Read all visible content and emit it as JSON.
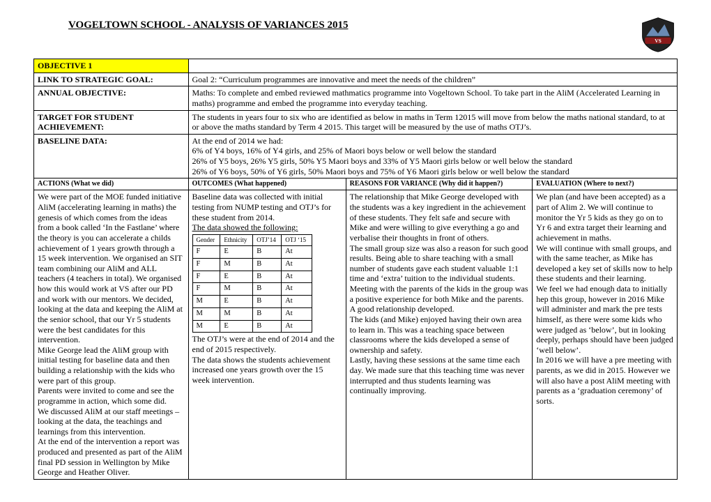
{
  "title": "VOGELTOWN SCHOOL - ANALYSIS OF VARIANCES 2015",
  "logo": {
    "top_color": "#6a8bb5",
    "band_color": "#8b1a1a",
    "vs": "VS"
  },
  "rows": {
    "objective": {
      "label": "OBJECTIVE 1",
      "value": ""
    },
    "link": {
      "label": "LINK TO STRATEGIC GOAL:",
      "value": "Goal 2: “Curriculum programmes are innovative and meet the needs of the children”"
    },
    "annual": {
      "label": "ANNUAL OBJECTIVE:",
      "value": "Maths: To complete and embed reviewed mathmatics programme into Vogeltown School. To take part in the AliM (Accelerated Learning in maths) programme and embed the programme into everyday teaching."
    },
    "target": {
      "label": "TARGET FOR STUDENT ACHIEVEMENT:",
      "value": "The students in years four to six who are identified as below in maths in Term 12015 will move from below the maths national standard, to at or above the maths standard by Term 4 2015. This target will be measured by the use of maths OTJ’s."
    },
    "baseline": {
      "label": "BASELINE DATA:",
      "lines": [
        "At the end of 2014 we had:",
        "6% of Y4 boys, 16% of Y4 girls, and 25% of Maori boys below or well below the standard",
        "26% of Y5 boys, 26% Y5 girls, 50% Y5 Maori boys and 33% of Y5 Maori girls below or well below the standard",
        "26% of Y6 boys, 50% of Y6 girls, 50% Maori boys and 75% of Y6 Maori girls below or well below the standard"
      ]
    }
  },
  "subheaders": {
    "actions": "ACTIONS (What we did)",
    "outcomes": "OUTCOMES (What happened)",
    "reasons": "REASONS FOR VARIANCE (Why did it happen?)",
    "evaluation": "EVALUATION (Where to next?)"
  },
  "actions_text": "We were part of the MOE funded initiative AliM (accelerating learning in maths) the genesis of which comes from the ideas from a book called ‘In the Fastlane’ where the theory is you can accelerate a childs achievement of 1 years growth through a 15 week intervention. We organised an SIT team combining our AliM and ALL teachers (4 teachers in total). We organised how this would work at VS after our PD and work with our mentors. We decided, looking at the data and keeping the AliM at the senior school, that our Yr 5 students were the best candidates for this intervention.\nMike George lead the AliM group with initial testing for baseline data and then building a relationship with the kids who were part of this group.\nParents were invited to come and see the programme in action, which some did.\nWe discussed AliM at our staff meetings – looking at the data, the teachings and learnings from this intervention.\nAt the end of the intervention a report was produced and presented as part of the AliM final PD session in Wellington by Mike George and Heather Oliver.",
  "outcomes_pre": "Baseline data was collected with initial testing from NUMP testing and OTJ’s for these student from 2014.",
  "outcomes_mid": "The data showed the following:",
  "outcomes_table": {
    "headers": [
      "Gender",
      "Ethnicity",
      "OTJ’14",
      "OTJ ‘15"
    ],
    "rows": [
      [
        "F",
        "E",
        "B",
        "At"
      ],
      [
        "F",
        "M",
        "B",
        "At"
      ],
      [
        "F",
        "E",
        "B",
        "At"
      ],
      [
        "F",
        "M",
        "B",
        "At"
      ],
      [
        "M",
        "E",
        "B",
        "At"
      ],
      [
        "M",
        "M",
        "B",
        "At"
      ],
      [
        "M",
        "E",
        "B",
        "At"
      ]
    ]
  },
  "outcomes_post": "The OTJ’s were at the end of 2014 and the end of 2015 respectively.\nThe data shows the students achievement increased one years growth over the 15 week intervention.",
  "reasons_text": "The relationship that Mike George developed with the students was a key ingredient in the achievement of these students. They felt safe and secure with Mike and were willing to give everything a go and verbalise their thoughts in front of others.\nThe small group size was also a reason for such good results. Being able to share teaching with a small number of students gave each student valuable 1:1 time and ‘extra’ tuition to the individual students.\nMeeting with the parents of the kids in the group was a positive experience for both Mike and the parents. A good relationship developed.\nThe kids (and Mike) enjoyed having their own area to learn in. This was a teaching space between classrooms where the kids developed a sense of ownership and safety.\nLastly, having these sessions at the same time each day. We made sure that this teaching time was never interrupted and thus students learning was continually improving.",
  "evaluation_text": "We plan (and have been accepted) as a part of Alim 2. We will continue to monitor the Yr 5 kids as they go on to Yr 6 and extra target their learning and achievement in maths.\nWe will continue with small groups, and with the same teacher, as Mike has developed a key set of skills now to help these students and their learning.\nWe feel we had enough data to initially hep this group, however in 2016 Mike will administer and mark the pre tests himself, as there were some kids who were judged as ‘below’, but in looking deeply, perhaps should have been judged ‘well below’.\nIn 2016 we will have a pre meeting with parents, as we did in 2015.  However we will also have a post AliM meeting with parents as a ‘graduation ceremony’ of sorts."
}
